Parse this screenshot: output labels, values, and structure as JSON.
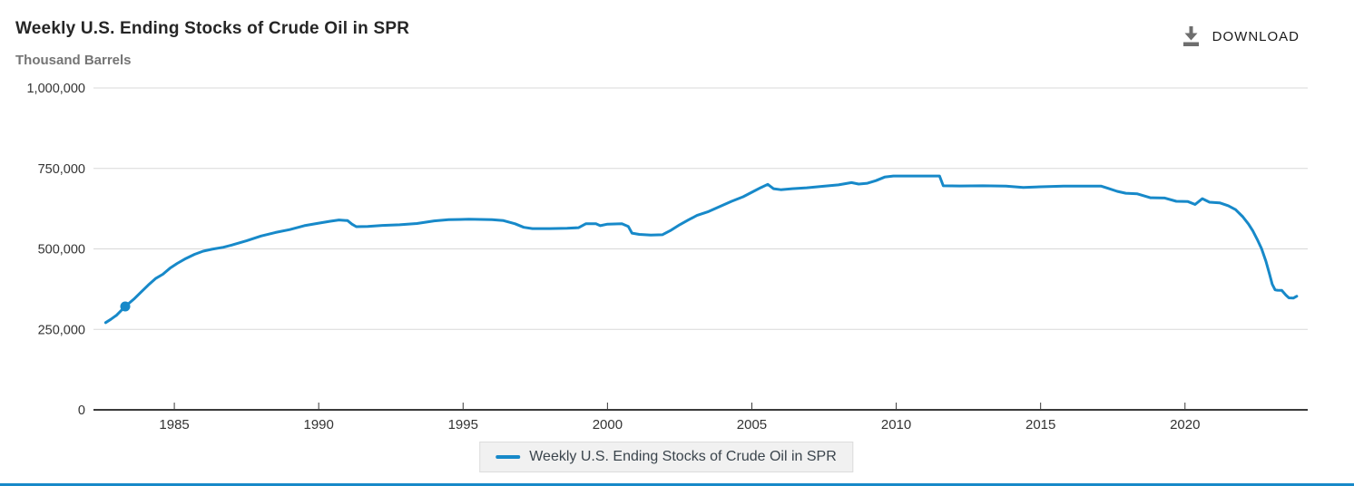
{
  "header": {
    "title": "Weekly U.S. Ending Stocks of Crude Oil in SPR",
    "subtitle": "Thousand Barrels",
    "download_label": "DOWNLOAD"
  },
  "legend": {
    "label": "Weekly U.S. Ending Stocks of Crude Oil in SPR"
  },
  "colors": {
    "series": "#1789c9",
    "grid": "#d8d8d8",
    "axis": "#3a3a3a",
    "tick_text": "#333333",
    "title_text": "#262626",
    "subtitle_text": "#757575",
    "legend_bg": "#f1f1f1",
    "legend_border": "#dcdcdc",
    "legend_text": "#3a444c",
    "download_icon": "#6e6e6e",
    "download_text": "#1a1a1a",
    "bottom_border": "#1789c9"
  },
  "chart_data": {
    "type": "line",
    "title": "Weekly U.S. Ending Stocks of Crude Oil in SPR",
    "ylabel": "Thousand Barrels",
    "xlabel": "",
    "grid": "horizontal",
    "legend_position": "bottom-center",
    "x_axis": {
      "min": 1982.2,
      "max": 2024.25,
      "ticks": [
        1985,
        1990,
        1995,
        2000,
        2005,
        2010,
        2015,
        2020
      ],
      "tick_labels": [
        "1985",
        "1990",
        "1995",
        "2000",
        "2005",
        "2010",
        "2015",
        "2020"
      ]
    },
    "y_axis": {
      "min": 0,
      "max": 1000000,
      "ticks": [
        {
          "value": 0,
          "label": "0"
        },
        {
          "value": 250000,
          "label": "250,000"
        },
        {
          "value": 500000,
          "label": "500,000"
        },
        {
          "value": 750000,
          "label": "750,000"
        },
        {
          "value": 1000000,
          "label": "1,000,000"
        }
      ]
    },
    "highlight_marker": {
      "x": 1983.3,
      "y": 321000
    },
    "series": [
      {
        "name": "Weekly U.S. Ending Stocks of Crude Oil in SPR",
        "color": "#1789c9",
        "points": [
          [
            1982.62,
            271000
          ],
          [
            1982.8,
            281000
          ],
          [
            1983.0,
            294000
          ],
          [
            1983.3,
            321000
          ],
          [
            1983.6,
            344000
          ],
          [
            1983.85,
            366000
          ],
          [
            1984.1,
            388000
          ],
          [
            1984.35,
            408000
          ],
          [
            1984.6,
            421000
          ],
          [
            1984.85,
            440000
          ],
          [
            1985.1,
            455000
          ],
          [
            1985.4,
            470000
          ],
          [
            1985.7,
            483000
          ],
          [
            1986.0,
            493000
          ],
          [
            1986.3,
            499000
          ],
          [
            1986.7,
            505000
          ],
          [
            1987.0,
            512000
          ],
          [
            1987.5,
            525000
          ],
          [
            1988.0,
            540000
          ],
          [
            1988.5,
            551000
          ],
          [
            1989.0,
            560000
          ],
          [
            1989.5,
            572000
          ],
          [
            1990.0,
            580000
          ],
          [
            1990.4,
            586000
          ],
          [
            1990.7,
            590000
          ],
          [
            1991.0,
            588000
          ],
          [
            1991.15,
            577000
          ],
          [
            1991.3,
            569000
          ],
          [
            1991.7,
            570000
          ],
          [
            1992.2,
            573000
          ],
          [
            1992.8,
            575000
          ],
          [
            1993.4,
            579000
          ],
          [
            1994.0,
            587000
          ],
          [
            1994.5,
            591000
          ],
          [
            1995.2,
            592000
          ],
          [
            1996.0,
            591000
          ],
          [
            1996.4,
            588000
          ],
          [
            1996.8,
            578000
          ],
          [
            1997.1,
            567000
          ],
          [
            1997.4,
            563000
          ],
          [
            1998.0,
            563000
          ],
          [
            1998.6,
            564000
          ],
          [
            1999.0,
            566000
          ],
          [
            1999.25,
            578000
          ],
          [
            1999.6,
            578000
          ],
          [
            1999.75,
            572000
          ],
          [
            2000.0,
            577000
          ],
          [
            2000.5,
            578000
          ],
          [
            2000.72,
            570000
          ],
          [
            2000.85,
            549000
          ],
          [
            2001.1,
            545000
          ],
          [
            2001.5,
            543000
          ],
          [
            2001.9,
            544000
          ],
          [
            2002.2,
            558000
          ],
          [
            2002.5,
            575000
          ],
          [
            2002.8,
            590000
          ],
          [
            2003.1,
            604000
          ],
          [
            2003.5,
            616000
          ],
          [
            2003.9,
            632000
          ],
          [
            2004.3,
            648000
          ],
          [
            2004.7,
            662000
          ],
          [
            2005.0,
            676000
          ],
          [
            2005.3,
            690000
          ],
          [
            2005.55,
            700500
          ],
          [
            2005.75,
            687000
          ],
          [
            2006.0,
            684000
          ],
          [
            2006.4,
            687000
          ],
          [
            2006.9,
            690000
          ],
          [
            2007.4,
            694000
          ],
          [
            2008.0,
            699000
          ],
          [
            2008.45,
            706000
          ],
          [
            2008.7,
            701500
          ],
          [
            2009.0,
            704000
          ],
          [
            2009.3,
            712000
          ],
          [
            2009.6,
            723000
          ],
          [
            2009.9,
            726500
          ],
          [
            2010.5,
            726600
          ],
          [
            2011.0,
            726500
          ],
          [
            2011.5,
            726500
          ],
          [
            2011.63,
            696000
          ],
          [
            2012.2,
            695500
          ],
          [
            2013.0,
            696000
          ],
          [
            2013.8,
            695000
          ],
          [
            2014.4,
            691000
          ],
          [
            2015.0,
            693000
          ],
          [
            2015.8,
            695000
          ],
          [
            2016.5,
            695100
          ],
          [
            2017.1,
            695000
          ],
          [
            2017.35,
            688000
          ],
          [
            2017.65,
            679000
          ],
          [
            2017.95,
            673000
          ],
          [
            2018.35,
            671000
          ],
          [
            2018.8,
            659000
          ],
          [
            2019.3,
            658000
          ],
          [
            2019.7,
            648000
          ],
          [
            2020.1,
            647000
          ],
          [
            2020.35,
            638000
          ],
          [
            2020.6,
            656000
          ],
          [
            2020.85,
            645000
          ],
          [
            2021.2,
            643000
          ],
          [
            2021.5,
            634000
          ],
          [
            2021.75,
            622000
          ],
          [
            2022.0,
            600000
          ],
          [
            2022.2,
            577000
          ],
          [
            2022.35,
            556000
          ],
          [
            2022.5,
            530000
          ],
          [
            2022.65,
            501000
          ],
          [
            2022.8,
            462000
          ],
          [
            2022.92,
            424000
          ],
          [
            2023.02,
            390000
          ],
          [
            2023.12,
            373000
          ],
          [
            2023.2,
            371600
          ],
          [
            2023.35,
            371000
          ],
          [
            2023.5,
            356000
          ],
          [
            2023.6,
            348000
          ],
          [
            2023.75,
            347000
          ],
          [
            2023.87,
            353000
          ]
        ]
      }
    ]
  }
}
